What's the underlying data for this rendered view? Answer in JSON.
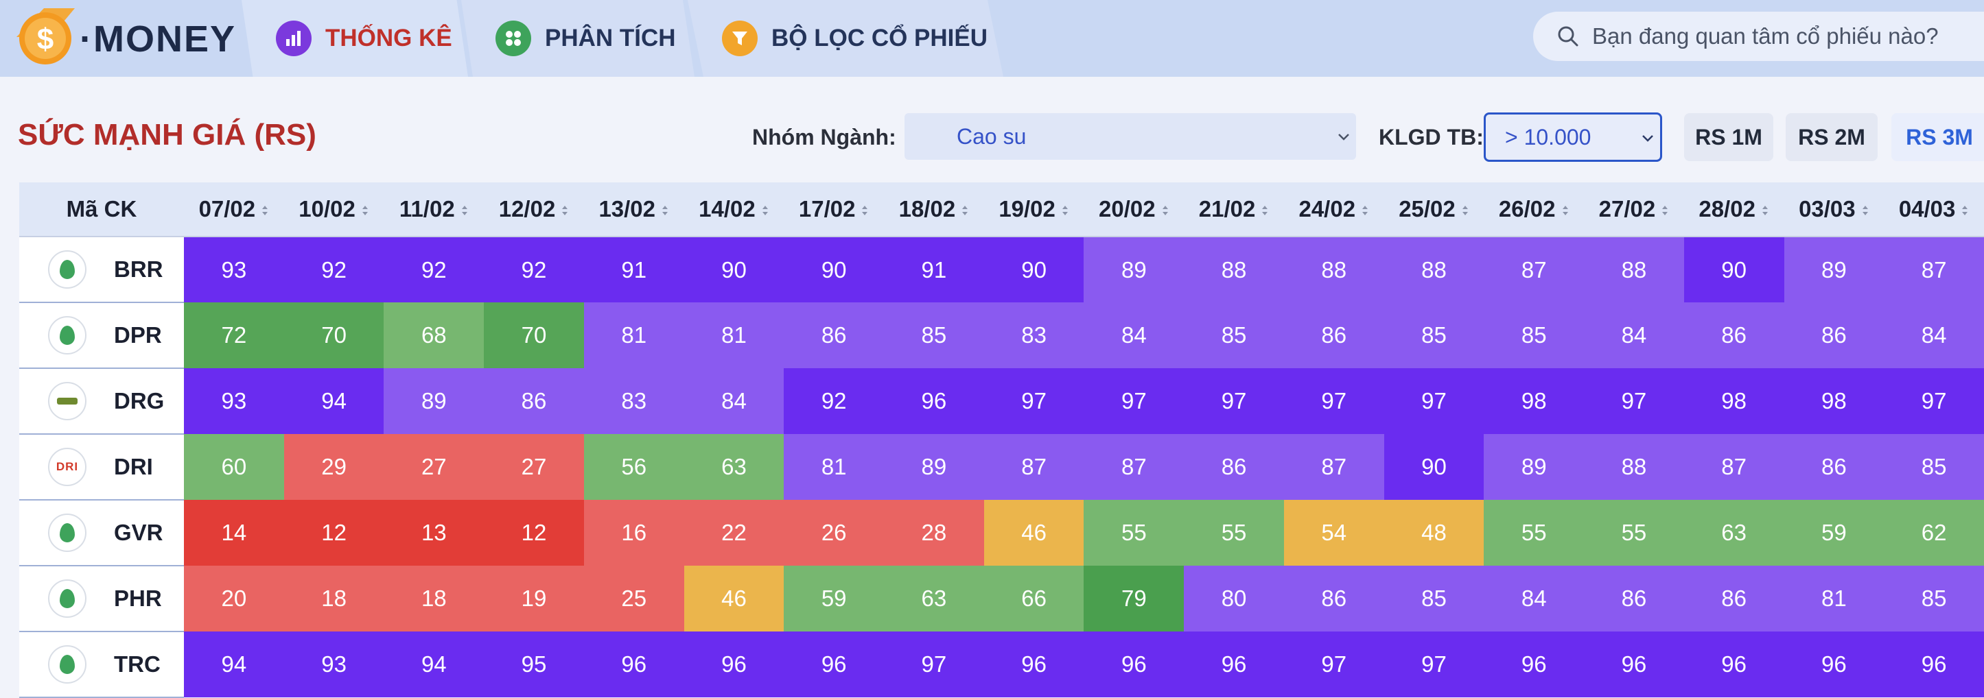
{
  "brand": {
    "logo_text": "·MONEY"
  },
  "nav": {
    "tabs": [
      {
        "label": "THỐNG KÊ",
        "icon": "bar-chart-icon",
        "active": true
      },
      {
        "label": "PHÂN TÍCH",
        "icon": "analysis-icon",
        "active": false
      },
      {
        "label": "BỘ LỌC CỔ PHIẾU",
        "icon": "filter-icon",
        "active": false
      }
    ]
  },
  "search": {
    "placeholder": "Bạn đang quan tâm cổ phiếu nào?"
  },
  "page": {
    "title": "SỨC MẠNH GIÁ (RS)"
  },
  "filters": {
    "industry_label": "Nhóm Ngành:",
    "industry_value": "Cao su",
    "volume_label": "KLGD TB:",
    "volume_value": "> 10.000"
  },
  "rs_buttons": [
    {
      "label": "RS 1M",
      "active": false
    },
    {
      "label": "RS 2M",
      "active": false
    },
    {
      "label": "RS 3M",
      "active": true
    }
  ],
  "table": {
    "ticker_header": "Mã CK",
    "dates": [
      "07/02",
      "10/02",
      "11/02",
      "12/02",
      "13/02",
      "14/02",
      "17/02",
      "18/02",
      "19/02",
      "20/02",
      "21/02",
      "24/02",
      "25/02",
      "26/02",
      "27/02",
      "28/02",
      "03/03",
      "04/03"
    ],
    "rows": [
      {
        "ticker": "BRR",
        "logo": "rubber-company-logo",
        "values": [
          93,
          92,
          92,
          92,
          91,
          90,
          90,
          91,
          90,
          89,
          88,
          88,
          88,
          87,
          88,
          90,
          89,
          87
        ]
      },
      {
        "ticker": "DPR",
        "logo": "rubber-company-logo",
        "values": [
          72,
          70,
          68,
          70,
          81,
          81,
          86,
          85,
          83,
          84,
          85,
          86,
          85,
          85,
          84,
          86,
          86,
          84
        ]
      },
      {
        "ticker": "DRG",
        "logo": "rubber-company-logo",
        "values": [
          93,
          94,
          89,
          86,
          83,
          84,
          92,
          96,
          97,
          97,
          97,
          97,
          97,
          98,
          97,
          98,
          98,
          97
        ]
      },
      {
        "ticker": "DRI",
        "logo": "dri-logo",
        "values": [
          60,
          29,
          27,
          27,
          56,
          63,
          81,
          89,
          87,
          87,
          86,
          87,
          90,
          89,
          88,
          87,
          86,
          85
        ]
      },
      {
        "ticker": "GVR",
        "logo": "rubber-company-logo",
        "values": [
          14,
          12,
          13,
          12,
          16,
          22,
          26,
          28,
          46,
          55,
          55,
          54,
          48,
          55,
          55,
          63,
          59,
          62
        ]
      },
      {
        "ticker": "PHR",
        "logo": "rubber-company-logo",
        "values": [
          20,
          18,
          18,
          19,
          25,
          46,
          59,
          63,
          66,
          79,
          80,
          86,
          85,
          84,
          86,
          86,
          81,
          85
        ]
      },
      {
        "ticker": "TRC",
        "logo": "rubber-company-logo",
        "values": [
          94,
          93,
          94,
          95,
          96,
          96,
          96,
          97,
          96,
          96,
          96,
          97,
          97,
          96,
          96,
          96,
          96,
          96
        ]
      }
    ]
  },
  "colors": {
    "accent": "#2e62d8",
    "title_red": "#b22d2a"
  }
}
